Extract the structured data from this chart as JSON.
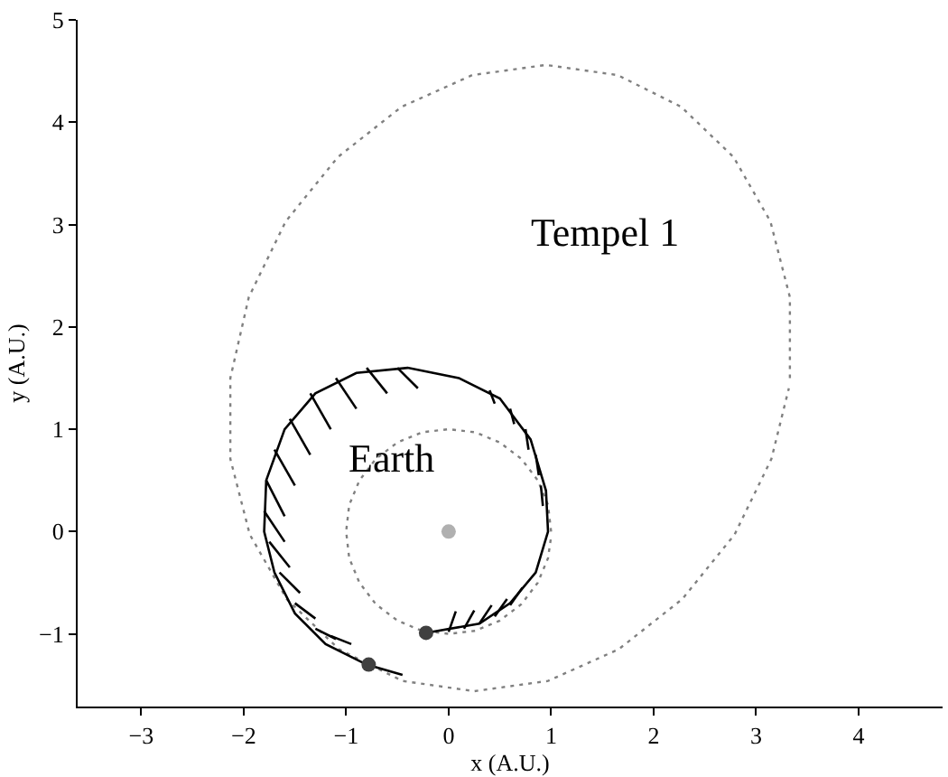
{
  "chart_data": {
    "type": "line",
    "xlabel": "x (A.U.)",
    "ylabel": "y (A.U.)",
    "xlim": [
      -3.62,
      4.82
    ],
    "ylim": [
      -1.71,
      5
    ],
    "xticks": [
      {
        "value": -3,
        "label": "−3"
      },
      {
        "value": -2,
        "label": "−2"
      },
      {
        "value": -1,
        "label": "−1"
      },
      0,
      1,
      2,
      3,
      4
    ],
    "yticks": [
      {
        "value": -1,
        "label": "−1"
      },
      0,
      1,
      2,
      3,
      4,
      5
    ],
    "annotations": [
      "Tempel 1",
      "Earth"
    ],
    "series": [
      {
        "line_style": "dotted",
        "color": "#808080",
        "x": [
          3.33,
          3.33,
          3.14,
          2.78,
          2.27,
          1.65,
          0.95,
          0.23,
          -0.46,
          -1.08,
          -1.59,
          -1.95,
          -2.13,
          -2.13,
          -1.94,
          -1.58,
          -1.07,
          -0.45,
          0.25,
          0.97,
          1.66,
          2.28,
          2.79,
          3.15,
          3.32
        ],
        "values": [
          1.5,
          2.29,
          3.03,
          3.66,
          4.15,
          4.46,
          4.56,
          4.46,
          4.15,
          3.66,
          3.03,
          2.29,
          1.5,
          0.71,
          -0.03,
          -0.66,
          -1.15,
          -1.46,
          -1.56,
          -1.46,
          -1.15,
          -0.66,
          -0.03,
          0.71,
          1.4
        ]
      },
      {
        "line_style": "dotted",
        "color": "#808080",
        "x": [
          1,
          0.97,
          0.87,
          0.71,
          0.5,
          0.26,
          0,
          -0.26,
          -0.5,
          -0.71,
          -0.87,
          -0.97,
          -1,
          -0.97,
          -0.87,
          -0.71,
          -0.5,
          -0.26,
          0,
          0.26,
          0.5,
          0.71,
          0.87,
          0.97,
          1.0
        ],
        "values": [
          0,
          0.26,
          0.5,
          0.71,
          0.87,
          0.97,
          1,
          0.97,
          0.87,
          0.71,
          0.5,
          0.26,
          0,
          -0.26,
          -0.5,
          -0.71,
          -0.87,
          -0.97,
          -1,
          -0.97,
          -0.87,
          -0.71,
          -0.5,
          -0.26,
          -0.05
        ]
      },
      {
        "line_style": "solid",
        "color": "#000000",
        "x": [
          -0.22,
          0.3,
          0.6,
          0.85,
          0.97,
          0.95,
          0.8,
          0.5,
          0.1,
          -0.4,
          -0.9,
          -1.3,
          -1.6,
          -1.78,
          -1.8,
          -1.7,
          -1.5,
          -1.2,
          -0.8,
          -0.45
        ],
        "values": [
          -0.99,
          -0.9,
          -0.7,
          -0.4,
          0,
          0.4,
          0.9,
          1.3,
          1.5,
          1.6,
          1.55,
          1.35,
          1.0,
          0.5,
          0,
          -0.4,
          -0.8,
          -1.1,
          -1.3,
          -1.4
        ]
      },
      {
        "line_style": "solid",
        "color": "#000000",
        "x": [
          0.0,
          0.07,
          null,
          0.15,
          0.25,
          null,
          0.3,
          0.42,
          null,
          0.45,
          0.57,
          null,
          0.6,
          0.72,
          null,
          0.9,
          0.92,
          null,
          0.85,
          0.88,
          null,
          0.75,
          0.78,
          null,
          0.6,
          0.64,
          null,
          0.4,
          0.45,
          null,
          -0.5,
          -0.3,
          null,
          -0.8,
          -0.6,
          null,
          -1.1,
          -0.9,
          null,
          -1.35,
          -1.15,
          null,
          -1.55,
          -1.35,
          null,
          -1.7,
          -1.5,
          null,
          -1.78,
          -1.6,
          null,
          -1.8,
          -1.6,
          null,
          -1.75,
          -1.55,
          null,
          -1.65,
          -1.45,
          null,
          -1.5,
          -1.3,
          null,
          -1.3,
          -1.1,
          null,
          -1.15,
          -0.95
        ],
        "values": [
          -0.98,
          -0.78,
          null,
          -0.95,
          -0.77,
          null,
          -0.9,
          -0.72,
          null,
          -0.83,
          -0.66,
          null,
          -0.72,
          -0.55,
          null,
          0.45,
          0.25,
          null,
          0.75,
          0.55,
          null,
          1.0,
          0.8,
          null,
          1.2,
          1.05,
          null,
          1.38,
          1.25,
          null,
          1.6,
          1.4,
          null,
          1.6,
          1.35,
          null,
          1.5,
          1.2,
          null,
          1.35,
          1.0,
          null,
          1.1,
          0.75,
          null,
          0.8,
          0.45,
          null,
          0.5,
          0.15,
          null,
          0.2,
          -0.1,
          null,
          -0.1,
          -0.35,
          null,
          -0.4,
          -0.6,
          null,
          -0.7,
          -0.85,
          null,
          -0.95,
          -1.05,
          null,
          -1.02,
          -1.1
        ]
      },
      {
        "type": "scatter",
        "marker": "circle",
        "colors": [
          "#404040",
          "#404040",
          "#b0b0b0"
        ],
        "x": [
          -0.22,
          -0.78,
          0
        ],
        "values": [
          -0.99,
          -1.3,
          0
        ]
      }
    ]
  }
}
